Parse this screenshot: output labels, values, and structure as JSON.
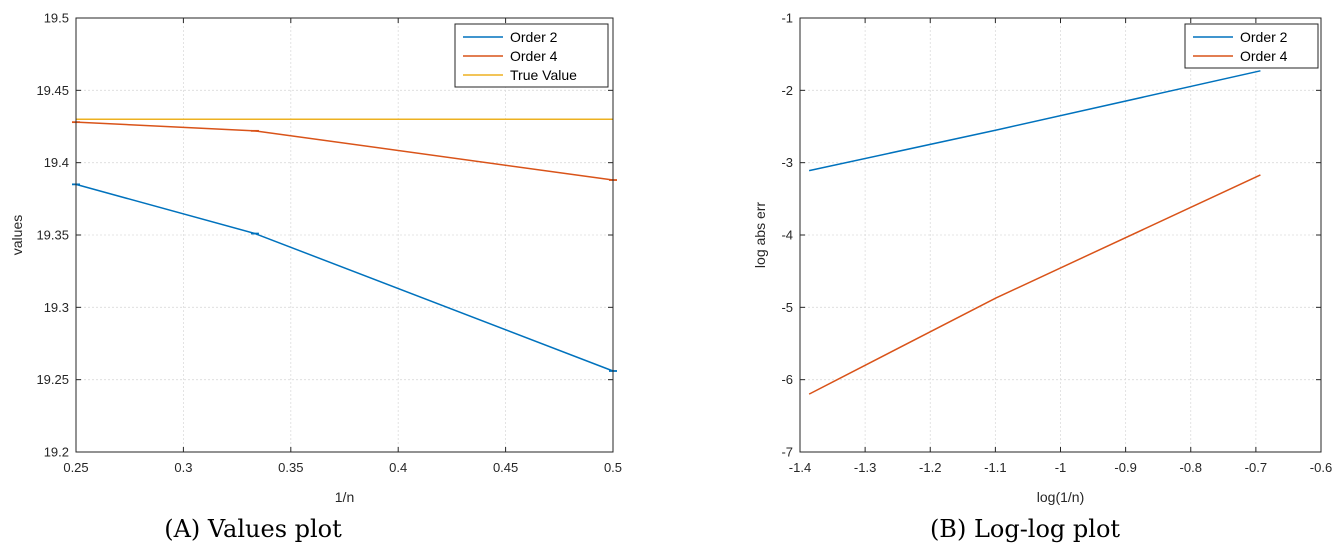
{
  "chart_data": [
    {
      "type": "line",
      "xlabel": "1/n",
      "ylabel": "values",
      "xlim": [
        0.25,
        0.5
      ],
      "ylim": [
        19.2,
        19.5
      ],
      "xticks": [
        0.25,
        0.3,
        0.35,
        0.4,
        0.45,
        0.5
      ],
      "xtick_labels": [
        "0.25",
        "0.3",
        "0.35",
        "0.4",
        "0.45",
        "0.5"
      ],
      "yticks": [
        19.2,
        19.25,
        19.3,
        19.35,
        19.4,
        19.45,
        19.5
      ],
      "ytick_labels": [
        "19.2",
        "19.25",
        "19.3",
        "19.35",
        "19.4",
        "19.45",
        "19.5"
      ],
      "grid": true,
      "legend_position": "top-right",
      "series": [
        {
          "name": "Order 2",
          "color": "#0072bd",
          "x": [
            0.25,
            0.3333,
            0.5
          ],
          "y": [
            19.385,
            19.351,
            19.256
          ],
          "error_bars": true
        },
        {
          "name": "Order 4",
          "color": "#d95319",
          "x": [
            0.25,
            0.3333,
            0.5
          ],
          "y": [
            19.428,
            19.422,
            19.388
          ],
          "error_bars": true
        },
        {
          "name": "True Value",
          "color": "#edb120",
          "x": [
            0.25,
            0.5
          ],
          "y": [
            19.43,
            19.43
          ],
          "error_bars": false
        }
      ]
    },
    {
      "type": "line",
      "xlabel": "log(1/n)",
      "ylabel": "log abs err",
      "xlim": [
        -1.4,
        -0.6
      ],
      "ylim": [
        -7,
        -1
      ],
      "xticks": [
        -1.4,
        -1.3,
        -1.2,
        -1.1,
        -1.0,
        -0.9,
        -0.8,
        -0.7,
        -0.6
      ],
      "xtick_labels": [
        "-1.4",
        "-1.3",
        "-1.2",
        "-1.1",
        "-1",
        "-0.9",
        "-0.8",
        "-0.7",
        "-0.6"
      ],
      "yticks": [
        -7,
        -6,
        -5,
        -4,
        -3,
        -2,
        -1
      ],
      "ytick_labels": [
        "-7",
        "-6",
        "-5",
        "-4",
        "-3",
        "-2",
        "-1"
      ],
      "grid": true,
      "legend_position": "top-right",
      "series": [
        {
          "name": "Order 2",
          "color": "#0072bd",
          "x": [
            -1.386,
            -1.099,
            -0.693
          ],
          "y": [
            -3.11,
            -2.55,
            -1.73
          ],
          "error_bars": false
        },
        {
          "name": "Order 4",
          "color": "#d95319",
          "x": [
            -1.386,
            -1.099,
            -0.693
          ],
          "y": [
            -6.2,
            -4.87,
            -3.17
          ],
          "error_bars": false
        }
      ]
    }
  ],
  "captions": {
    "a": "(A) Values plot",
    "b": "(B) Log-log plot"
  }
}
